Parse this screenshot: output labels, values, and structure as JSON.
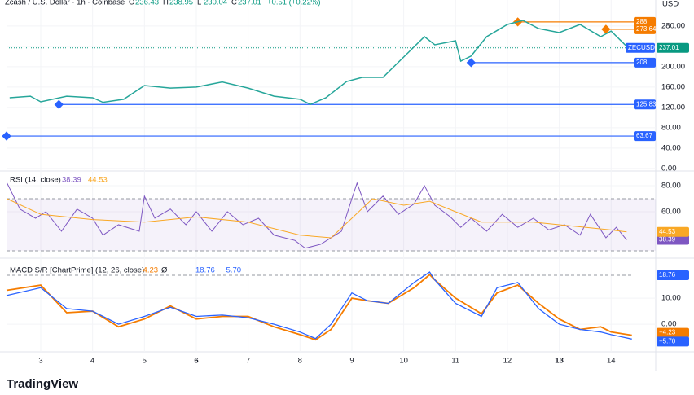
{
  "chart_data": [
    {
      "type": "line",
      "title": "Zcash / U.S. Dollar · 1h · Coinbase",
      "ohlc": [
        {
          "label": "O",
          "value": 236.43
        },
        {
          "label": "H",
          "value": 238.95
        },
        {
          "label": "L",
          "value": 230.04
        },
        {
          "label": "C",
          "value": 237.01
        }
      ],
      "change": "+0.51 (+0.22%)",
      "axis_unit": "USD",
      "symbol": "ZECUSD",
      "color": "#26a69a",
      "xlim": [
        2.34,
        14.86
      ],
      "xticks": [
        3,
        4,
        5,
        6,
        7,
        8,
        9,
        10,
        11,
        12,
        13,
        14
      ],
      "bold_xticks": [
        6,
        13
      ],
      "ylim": [
        -5,
        331
      ],
      "yticks": [
        {
          "value": 280,
          "label": "280.00"
        },
        {
          "value": 240,
          "label": "240.00"
        },
        {
          "value": 200,
          "label": "200.00"
        },
        {
          "value": 160,
          "label": "160.00"
        },
        {
          "value": 120,
          "label": "120.00"
        },
        {
          "value": 80,
          "label": "80.00"
        },
        {
          "value": 40,
          "label": "40.00"
        },
        {
          "value": 0,
          "label": "0.00"
        }
      ],
      "x": [
        2.4,
        2.8,
        3.0,
        3.5,
        4.0,
        4.2,
        4.6,
        5.0,
        5.5,
        6.0,
        6.5,
        7.0,
        7.5,
        8.0,
        8.2,
        8.5,
        8.9,
        9.2,
        9.6,
        10.0,
        10.4,
        10.6,
        11.0,
        11.1,
        11.3,
        11.6,
        12.0,
        12.3,
        12.6,
        13.0,
        13.4,
        13.8,
        14.0,
        14.3,
        14.35
      ],
      "values": [
        139,
        142,
        131,
        142,
        139,
        130,
        136,
        163,
        158,
        160,
        170,
        158,
        142,
        136,
        126,
        139,
        171,
        179,
        179,
        219,
        259,
        243,
        251,
        211,
        221,
        259,
        283,
        291,
        275,
        267,
        283,
        259,
        270,
        240,
        237.01
      ],
      "levels": [
        {
          "value": 288,
          "label": "288",
          "color": "#f57c00",
          "start": 12.2
        },
        {
          "value": 273.64,
          "label": "273.64",
          "color": "#f57c00",
          "start": 13.9
        },
        {
          "value": 208,
          "label": "208",
          "color": "#2962ff",
          "start": 11.3
        },
        {
          "value": 125.83,
          "label": "125.83",
          "color": "#2962ff",
          "start": 3.35
        },
        {
          "value": 63.67,
          "label": "63.67",
          "color": "#2962ff",
          "start": 2.34
        }
      ]
    },
    {
      "type": "line",
      "title": "RSI (14, close)",
      "ylim": [
        25.6,
        90
      ],
      "yticks": [
        {
          "value": 80,
          "label": "80.00"
        },
        {
          "value": 60,
          "label": "60.00"
        }
      ],
      "bands": [
        70,
        30
      ],
      "series": [
        {
          "color": "#7e57c2",
          "x": [
            2.35,
            2.6,
            2.9,
            3.1,
            3.4,
            3.7,
            4.0,
            4.2,
            4.5,
            4.9,
            5.0,
            5.2,
            5.5,
            5.8,
            6.0,
            6.3,
            6.6,
            6.9,
            7.2,
            7.5,
            7.9,
            8.1,
            8.4,
            8.8,
            9.0,
            9.1,
            9.3,
            9.6,
            9.9,
            10.2,
            10.4,
            10.6,
            10.9,
            11.1,
            11.3,
            11.6,
            11.9,
            12.2,
            12.5,
            12.8,
            13.1,
            13.4,
            13.6,
            13.9,
            14.1,
            14.3
          ],
          "values": [
            82,
            62,
            55,
            60,
            45,
            62,
            55,
            42,
            50,
            45,
            72,
            55,
            62,
            50,
            60,
            45,
            60,
            50,
            55,
            42,
            38,
            32,
            35,
            45,
            70,
            82,
            60,
            72,
            58,
            66,
            80,
            65,
            56,
            48,
            55,
            45,
            58,
            48,
            55,
            46,
            50,
            42,
            58,
            40,
            48,
            38.39
          ]
        },
        {
          "color": "#f9a825",
          "x": [
            2.35,
            3.0,
            4.0,
            5.0,
            6.0,
            7.0,
            8.0,
            8.6,
            9.0,
            9.4,
            10.0,
            10.5,
            11.0,
            11.5,
            12.0,
            12.5,
            13.0,
            13.5,
            14.0,
            14.3
          ],
          "values": [
            70,
            58,
            54,
            52,
            56,
            52,
            42,
            40,
            55,
            70,
            65,
            68,
            60,
            52,
            52,
            52,
            50,
            48,
            46,
            44.53
          ]
        }
      ]
    },
    {
      "type": "line",
      "title": "MACD S/R [ChartPrime] (12, 26, close)",
      "symbol_mark": "Ø",
      "ylim": [
        -10.6,
        24.4
      ],
      "yticks": [
        {
          "value": 10,
          "label": "10.00"
        },
        {
          "value": 0,
          "label": "0.00"
        }
      ],
      "resistance": 18.76,
      "x": [
        2.34,
        3.0,
        3.5,
        4.0,
        4.5,
        5.0,
        5.5,
        6.0,
        6.5,
        7.0,
        7.5,
        8.0,
        8.3,
        8.6,
        9.0,
        9.3,
        9.7,
        10.2,
        10.5,
        10.6,
        11.0,
        11.5,
        11.8,
        12.2,
        12.6,
        13.0,
        13.4,
        13.8,
        14.0,
        14.4
      ],
      "series": [
        {
          "color": "#f57c00",
          "label": "−4.23",
          "values": [
            13,
            15,
            4.4,
            5,
            -1,
            2,
            7,
            2,
            3,
            3,
            -1,
            -4,
            -6,
            -2,
            10,
            9,
            8,
            14,
            19,
            17,
            10,
            4,
            12,
            15,
            8,
            2,
            -2,
            -1,
            -3,
            -4.23
          ]
        },
        {
          "color": "#2962ff",
          "label": "−5.70",
          "values": [
            11,
            14,
            6,
            5,
            0,
            3,
            6.5,
            3,
            3.5,
            2.5,
            0,
            -3,
            -5.5,
            0,
            12,
            9,
            8,
            16,
            20,
            17,
            8,
            3,
            14,
            16,
            6,
            0,
            -2,
            -3,
            -4,
            -5.7
          ]
        }
      ]
    }
  ],
  "footer": "TradingView"
}
